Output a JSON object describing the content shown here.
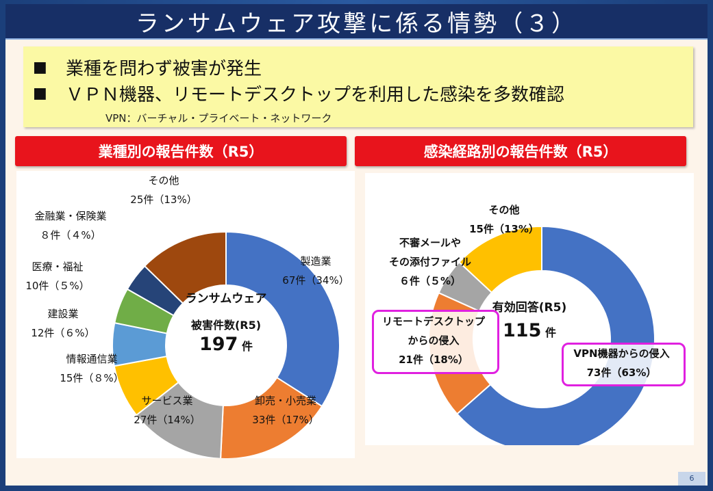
{
  "title": "ランサムウェア攻撃に係る情勢（３）",
  "bullets": [
    {
      "marker": "■",
      "text": "業種を問わず被害が発生"
    },
    {
      "marker": "■",
      "text": "ＶＰＮ機器、リモートデスクトップを利用した感染を多数確認"
    }
  ],
  "vpn_note": "VPN：バーチャル・プライベート・ネットワーク",
  "page_number": "6",
  "colors": {
    "blue": "#4472c4",
    "orange": "#ed7d31",
    "gray": "#a5a5a5",
    "yellow": "#ffc000",
    "lightblue": "#5b9bd5",
    "green": "#70ad47",
    "navy": "#264478",
    "brown": "#9e480e",
    "header_red": "#e8141c",
    "highlight": "#e020e0"
  },
  "chart_data": [
    {
      "type": "pie",
      "title": "業種別の報告件数（R5）",
      "center": {
        "line1": "ランサムウェア",
        "line2": "被害件数(R5)",
        "total": "197",
        "unit": "件"
      },
      "slices": [
        {
          "name": "製造業",
          "value": 67,
          "label": "67件（34%）",
          "color": "#4472c4"
        },
        {
          "name": "卸売・小売業",
          "value": 33,
          "label": "33件（17%）",
          "color": "#ed7d31"
        },
        {
          "name": "サービス業",
          "value": 27,
          "label": "27件（14%）",
          "color": "#a5a5a5"
        },
        {
          "name": "情報通信業",
          "value": 15,
          "label": "15件（８%）",
          "color": "#ffc000"
        },
        {
          "name": "建設業",
          "value": 12,
          "label": "12件（６%）",
          "color": "#5b9bd5"
        },
        {
          "name": "医療・福祉",
          "value": 10,
          "label": "10件（５%）",
          "color": "#70ad47"
        },
        {
          "name": "金融業・保険業",
          "value": 8,
          "label": "８件（４%）",
          "color": "#264478"
        },
        {
          "name": "その他",
          "value": 25,
          "label": "25件（13%）",
          "color": "#9e480e"
        }
      ]
    },
    {
      "type": "pie",
      "title": "感染経路別の報告件数（R5）",
      "center": {
        "line1": "有効回答(R5)",
        "total": "115",
        "unit": "件"
      },
      "slices": [
        {
          "name": "VPN機器からの侵入",
          "value": 73,
          "label": "73件（63%）",
          "color": "#4472c4"
        },
        {
          "name": "リモートデスクトップからの侵入",
          "name_line1": "リモートデスクトップ",
          "name_line2": "からの侵入",
          "value": 21,
          "label": "21件（18%）",
          "color": "#ed7d31"
        },
        {
          "name": "不審メールやその添付ファイル",
          "name_line1": "不審メールや",
          "name_line2": "その添付ファイル",
          "value": 6,
          "label": "６件（５%）",
          "color": "#a5a5a5"
        },
        {
          "name": "その他",
          "value": 15,
          "label": "15件（13%）",
          "color": "#ffc000"
        }
      ]
    }
  ]
}
